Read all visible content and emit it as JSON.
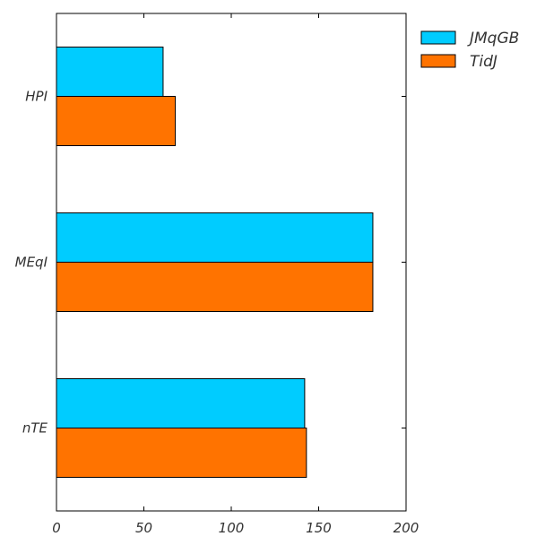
{
  "chart_data": {
    "type": "bar",
    "orientation": "horizontal",
    "categories": [
      "HPI",
      "MEqI",
      "nTE"
    ],
    "series": [
      {
        "name": "JMqGB",
        "color": "#00ccff",
        "values": [
          61,
          181,
          142
        ]
      },
      {
        "name": "TidJ",
        "color": "#ff7300",
        "values": [
          68,
          181,
          143
        ]
      }
    ],
    "xlim": [
      0,
      200
    ],
    "xticks": [
      0,
      50,
      100,
      150,
      200
    ],
    "grid": false,
    "legend_position": "outside-top-right"
  }
}
